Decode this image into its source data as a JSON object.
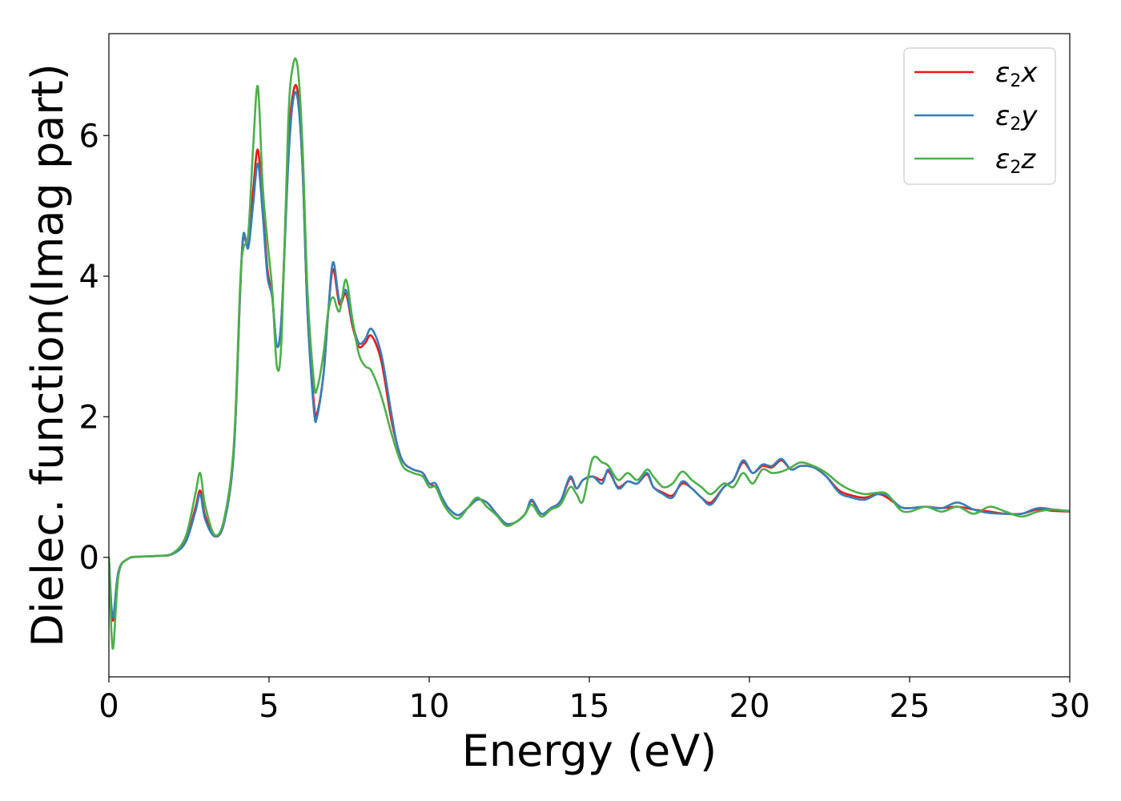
{
  "chart_data": {
    "type": "line",
    "xlabel": "Energy (eV)",
    "ylabel": "Dielec. function(Imag part)",
    "xlim": [
      0,
      30
    ],
    "ylim": [
      -1.7,
      7.45
    ],
    "x_ticks": [
      0,
      5,
      10,
      15,
      20,
      25,
      30
    ],
    "y_ticks": [
      0,
      2,
      4,
      6
    ],
    "grid": false,
    "legend_position": "top-right",
    "series": [
      {
        "name": "ε2x",
        "legend_main": "ε",
        "legend_sub": "2",
        "legend_var": "x",
        "color": "#e41a1c",
        "points": [
          [
            0,
            0
          ],
          [
            0.12,
            -0.9
          ],
          [
            0.3,
            -0.2
          ],
          [
            0.6,
            -0.02
          ],
          [
            1.0,
            0.01
          ],
          [
            1.5,
            0.02
          ],
          [
            2.0,
            0.05
          ],
          [
            2.4,
            0.25
          ],
          [
            2.7,
            0.7
          ],
          [
            2.85,
            0.95
          ],
          [
            3.0,
            0.6
          ],
          [
            3.3,
            0.3
          ],
          [
            3.6,
            0.5
          ],
          [
            3.9,
            1.5
          ],
          [
            4.1,
            3.8
          ],
          [
            4.2,
            4.55
          ],
          [
            4.35,
            4.45
          ],
          [
            4.5,
            5.2
          ],
          [
            4.65,
            5.8
          ],
          [
            4.8,
            5.0
          ],
          [
            4.95,
            4.1
          ],
          [
            5.1,
            3.7
          ],
          [
            5.25,
            3.0
          ],
          [
            5.4,
            3.5
          ],
          [
            5.6,
            5.8
          ],
          [
            5.75,
            6.6
          ],
          [
            5.9,
            6.6
          ],
          [
            6.05,
            5.5
          ],
          [
            6.2,
            3.5
          ],
          [
            6.4,
            2.2
          ],
          [
            6.5,
            2.05
          ],
          [
            6.7,
            2.6
          ],
          [
            6.85,
            3.5
          ],
          [
            7.0,
            4.1
          ],
          [
            7.2,
            3.6
          ],
          [
            7.4,
            3.75
          ],
          [
            7.6,
            3.3
          ],
          [
            7.8,
            3.0
          ],
          [
            8.0,
            3.05
          ],
          [
            8.2,
            3.15
          ],
          [
            8.5,
            2.8
          ],
          [
            8.8,
            2.0
          ],
          [
            9.0,
            1.6
          ],
          [
            9.2,
            1.35
          ],
          [
            9.5,
            1.25
          ],
          [
            9.8,
            1.2
          ],
          [
            10.0,
            1.05
          ],
          [
            10.2,
            1.0
          ],
          [
            10.4,
            0.85
          ],
          [
            10.6,
            0.7
          ],
          [
            10.9,
            0.6
          ],
          [
            11.2,
            0.7
          ],
          [
            11.5,
            0.82
          ],
          [
            11.8,
            0.78
          ],
          [
            12.1,
            0.62
          ],
          [
            12.4,
            0.48
          ],
          [
            12.7,
            0.5
          ],
          [
            13.0,
            0.62
          ],
          [
            13.2,
            0.8
          ],
          [
            13.5,
            0.62
          ],
          [
            13.8,
            0.7
          ],
          [
            14.1,
            0.8
          ],
          [
            14.4,
            1.12
          ],
          [
            14.6,
            0.98
          ],
          [
            14.8,
            1.1
          ],
          [
            15.1,
            1.15
          ],
          [
            15.4,
            1.1
          ],
          [
            15.6,
            1.22
          ],
          [
            15.9,
            1.0
          ],
          [
            16.2,
            1.08
          ],
          [
            16.5,
            1.05
          ],
          [
            16.8,
            1.18
          ],
          [
            17.0,
            1.0
          ],
          [
            17.3,
            0.92
          ],
          [
            17.6,
            0.88
          ],
          [
            17.9,
            1.05
          ],
          [
            18.2,
            0.98
          ],
          [
            18.5,
            0.85
          ],
          [
            18.8,
            0.78
          ],
          [
            19.2,
            1.0
          ],
          [
            19.5,
            1.1
          ],
          [
            19.8,
            1.35
          ],
          [
            20.1,
            1.2
          ],
          [
            20.4,
            1.3
          ],
          [
            20.7,
            1.28
          ],
          [
            21.0,
            1.38
          ],
          [
            21.3,
            1.25
          ],
          [
            21.6,
            1.3
          ],
          [
            22.0,
            1.28
          ],
          [
            22.4,
            1.15
          ],
          [
            22.8,
            0.95
          ],
          [
            23.2,
            0.88
          ],
          [
            23.6,
            0.85
          ],
          [
            24.0,
            0.9
          ],
          [
            24.3,
            0.85
          ],
          [
            24.7,
            0.72
          ],
          [
            25.0,
            0.7
          ],
          [
            25.5,
            0.72
          ],
          [
            26.0,
            0.7
          ],
          [
            26.5,
            0.72
          ],
          [
            27.0,
            0.68
          ],
          [
            27.5,
            0.65
          ],
          [
            28.0,
            0.62
          ],
          [
            28.5,
            0.62
          ],
          [
            29.0,
            0.68
          ],
          [
            29.5,
            0.66
          ],
          [
            30.0,
            0.65
          ]
        ]
      },
      {
        "name": "ε2y",
        "legend_main": "ε",
        "legend_sub": "2",
        "legend_var": "y",
        "color": "#377eb8",
        "points": [
          [
            0,
            0
          ],
          [
            0.12,
            -0.85
          ],
          [
            0.3,
            -0.2
          ],
          [
            0.6,
            -0.02
          ],
          [
            1.0,
            0.01
          ],
          [
            1.5,
            0.02
          ],
          [
            2.0,
            0.05
          ],
          [
            2.4,
            0.22
          ],
          [
            2.7,
            0.65
          ],
          [
            2.85,
            0.9
          ],
          [
            3.0,
            0.55
          ],
          [
            3.3,
            0.3
          ],
          [
            3.6,
            0.5
          ],
          [
            3.9,
            1.5
          ],
          [
            4.1,
            3.8
          ],
          [
            4.2,
            4.6
          ],
          [
            4.35,
            4.4
          ],
          [
            4.5,
            5.0
          ],
          [
            4.65,
            5.6
          ],
          [
            4.8,
            4.9
          ],
          [
            4.95,
            4.0
          ],
          [
            5.1,
            3.7
          ],
          [
            5.25,
            3.0
          ],
          [
            5.4,
            3.5
          ],
          [
            5.6,
            5.6
          ],
          [
            5.75,
            6.5
          ],
          [
            5.9,
            6.5
          ],
          [
            6.05,
            5.5
          ],
          [
            6.2,
            3.5
          ],
          [
            6.4,
            2.1
          ],
          [
            6.5,
            2.0
          ],
          [
            6.7,
            2.6
          ],
          [
            6.85,
            3.5
          ],
          [
            7.0,
            4.2
          ],
          [
            7.2,
            3.65
          ],
          [
            7.4,
            3.8
          ],
          [
            7.6,
            3.35
          ],
          [
            7.8,
            3.05
          ],
          [
            8.0,
            3.1
          ],
          [
            8.2,
            3.25
          ],
          [
            8.5,
            2.9
          ],
          [
            8.8,
            2.1
          ],
          [
            9.0,
            1.6
          ],
          [
            9.2,
            1.35
          ],
          [
            9.5,
            1.25
          ],
          [
            9.8,
            1.2
          ],
          [
            10.0,
            1.05
          ],
          [
            10.2,
            1.05
          ],
          [
            10.4,
            0.85
          ],
          [
            10.6,
            0.7
          ],
          [
            10.9,
            0.6
          ],
          [
            11.2,
            0.7
          ],
          [
            11.5,
            0.82
          ],
          [
            11.8,
            0.78
          ],
          [
            12.1,
            0.62
          ],
          [
            12.4,
            0.48
          ],
          [
            12.7,
            0.5
          ],
          [
            13.0,
            0.62
          ],
          [
            13.2,
            0.82
          ],
          [
            13.5,
            0.62
          ],
          [
            13.8,
            0.7
          ],
          [
            14.1,
            0.8
          ],
          [
            14.4,
            1.15
          ],
          [
            14.6,
            0.98
          ],
          [
            14.8,
            1.1
          ],
          [
            15.1,
            1.15
          ],
          [
            15.4,
            1.05
          ],
          [
            15.6,
            1.25
          ],
          [
            15.9,
            0.98
          ],
          [
            16.2,
            1.08
          ],
          [
            16.5,
            1.05
          ],
          [
            16.8,
            1.2
          ],
          [
            17.0,
            1.0
          ],
          [
            17.3,
            0.9
          ],
          [
            17.6,
            0.85
          ],
          [
            17.9,
            1.08
          ],
          [
            18.2,
            0.98
          ],
          [
            18.5,
            0.85
          ],
          [
            18.8,
            0.75
          ],
          [
            19.2,
            1.0
          ],
          [
            19.5,
            1.1
          ],
          [
            19.8,
            1.38
          ],
          [
            20.1,
            1.2
          ],
          [
            20.4,
            1.32
          ],
          [
            20.7,
            1.3
          ],
          [
            21.0,
            1.4
          ],
          [
            21.3,
            1.25
          ],
          [
            21.6,
            1.3
          ],
          [
            22.0,
            1.28
          ],
          [
            22.4,
            1.15
          ],
          [
            22.8,
            0.92
          ],
          [
            23.2,
            0.85
          ],
          [
            23.6,
            0.82
          ],
          [
            24.0,
            0.9
          ],
          [
            24.3,
            0.88
          ],
          [
            24.7,
            0.72
          ],
          [
            25.0,
            0.7
          ],
          [
            25.5,
            0.72
          ],
          [
            26.0,
            0.7
          ],
          [
            26.5,
            0.78
          ],
          [
            27.0,
            0.68
          ],
          [
            27.5,
            0.63
          ],
          [
            28.0,
            0.62
          ],
          [
            28.5,
            0.62
          ],
          [
            29.0,
            0.7
          ],
          [
            29.5,
            0.68
          ],
          [
            30.0,
            0.66
          ]
        ]
      },
      {
        "name": "ε2z",
        "legend_main": "ε",
        "legend_sub": "2",
        "legend_var": "z",
        "color": "#4daf4a",
        "points": [
          [
            0,
            0
          ],
          [
            0.12,
            -1.3
          ],
          [
            0.3,
            -0.25
          ],
          [
            0.6,
            -0.02
          ],
          [
            1.0,
            0.01
          ],
          [
            1.5,
            0.02
          ],
          [
            2.0,
            0.06
          ],
          [
            2.4,
            0.3
          ],
          [
            2.7,
            0.9
          ],
          [
            2.85,
            1.2
          ],
          [
            3.0,
            0.75
          ],
          [
            3.3,
            0.32
          ],
          [
            3.6,
            0.55
          ],
          [
            3.9,
            1.6
          ],
          [
            4.1,
            3.9
          ],
          [
            4.2,
            4.4
          ],
          [
            4.35,
            4.6
          ],
          [
            4.5,
            5.8
          ],
          [
            4.65,
            6.7
          ],
          [
            4.8,
            5.3
          ],
          [
            4.95,
            4.5
          ],
          [
            5.1,
            3.8
          ],
          [
            5.25,
            2.7
          ],
          [
            5.4,
            3.2
          ],
          [
            5.6,
            6.2
          ],
          [
            5.75,
            7.0
          ],
          [
            5.9,
            6.95
          ],
          [
            6.05,
            5.8
          ],
          [
            6.2,
            3.8
          ],
          [
            6.4,
            2.5
          ],
          [
            6.5,
            2.4
          ],
          [
            6.7,
            2.9
          ],
          [
            6.85,
            3.5
          ],
          [
            7.0,
            3.7
          ],
          [
            7.2,
            3.5
          ],
          [
            7.4,
            3.95
          ],
          [
            7.6,
            3.4
          ],
          [
            7.8,
            2.9
          ],
          [
            8.0,
            2.72
          ],
          [
            8.2,
            2.65
          ],
          [
            8.5,
            2.3
          ],
          [
            8.8,
            1.8
          ],
          [
            9.0,
            1.5
          ],
          [
            9.2,
            1.28
          ],
          [
            9.5,
            1.2
          ],
          [
            9.8,
            1.15
          ],
          [
            10.0,
            1.0
          ],
          [
            10.2,
            1.0
          ],
          [
            10.4,
            0.8
          ],
          [
            10.6,
            0.65
          ],
          [
            10.9,
            0.55
          ],
          [
            11.2,
            0.7
          ],
          [
            11.5,
            0.85
          ],
          [
            11.8,
            0.72
          ],
          [
            12.1,
            0.6
          ],
          [
            12.4,
            0.45
          ],
          [
            12.7,
            0.5
          ],
          [
            13.0,
            0.62
          ],
          [
            13.2,
            0.75
          ],
          [
            13.5,
            0.58
          ],
          [
            13.8,
            0.68
          ],
          [
            14.1,
            0.75
          ],
          [
            14.4,
            1.0
          ],
          [
            14.6,
            0.9
          ],
          [
            14.8,
            0.8
          ],
          [
            15.1,
            1.4
          ],
          [
            15.4,
            1.35
          ],
          [
            15.6,
            1.3
          ],
          [
            15.9,
            1.1
          ],
          [
            16.2,
            1.2
          ],
          [
            16.5,
            1.1
          ],
          [
            16.8,
            1.25
          ],
          [
            17.0,
            1.15
          ],
          [
            17.3,
            1.0
          ],
          [
            17.6,
            1.05
          ],
          [
            17.9,
            1.22
          ],
          [
            18.2,
            1.1
          ],
          [
            18.5,
            1.0
          ],
          [
            18.8,
            0.9
          ],
          [
            19.2,
            1.05
          ],
          [
            19.5,
            1.0
          ],
          [
            19.8,
            1.2
          ],
          [
            20.1,
            1.05
          ],
          [
            20.4,
            1.25
          ],
          [
            20.7,
            1.2
          ],
          [
            21.0,
            1.22
          ],
          [
            21.3,
            1.28
          ],
          [
            21.6,
            1.35
          ],
          [
            22.0,
            1.3
          ],
          [
            22.4,
            1.2
          ],
          [
            22.8,
            1.05
          ],
          [
            23.2,
            0.95
          ],
          [
            23.6,
            0.9
          ],
          [
            24.0,
            0.92
          ],
          [
            24.3,
            0.9
          ],
          [
            24.7,
            0.68
          ],
          [
            25.0,
            0.65
          ],
          [
            25.5,
            0.72
          ],
          [
            26.0,
            0.65
          ],
          [
            26.5,
            0.72
          ],
          [
            27.0,
            0.62
          ],
          [
            27.5,
            0.72
          ],
          [
            28.0,
            0.65
          ],
          [
            28.5,
            0.58
          ],
          [
            29.0,
            0.65
          ],
          [
            29.5,
            0.68
          ],
          [
            30.0,
            0.65
          ]
        ]
      }
    ]
  }
}
